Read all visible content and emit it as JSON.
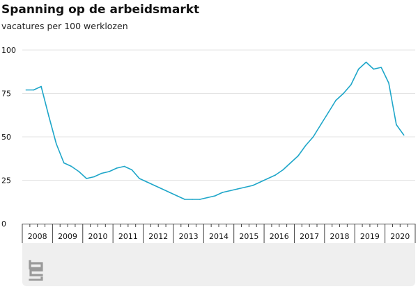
{
  "header": {
    "title": "Spanning op de arbeidsmarkt",
    "subtitle": "vacatures per 100 werklozen"
  },
  "chart_data": {
    "type": "line",
    "title": "Spanning op de arbeidsmarkt",
    "subtitle": "vacatures per 100 werklozen",
    "ylim": [
      0,
      100
    ],
    "xlim": [
      2007.875,
      2020.875
    ],
    "yticks": [
      0,
      25,
      50,
      75,
      100
    ],
    "grid": true,
    "legend": "none",
    "colors": {
      "line": "#1ea6c9",
      "grid": "#e3e3e3",
      "axis": "#444444",
      "footer": "#efefef",
      "logo": "#9a9a9a"
    },
    "year_labels": [
      "2008",
      "2009",
      "2010",
      "2011",
      "2012",
      "2013",
      "2014",
      "2015",
      "2016",
      "2017",
      "2018",
      "2019",
      "2020"
    ],
    "series": [
      {
        "x": [
          2008.0,
          2008.25,
          2008.5,
          2008.75,
          2009.0,
          2009.25,
          2009.5,
          2009.75,
          2010.0,
          2010.25,
          2010.5,
          2010.75,
          2011.0,
          2011.25,
          2011.5,
          2011.75,
          2012.0,
          2012.25,
          2012.5,
          2012.75,
          2013.0,
          2013.25,
          2013.5,
          2013.75,
          2014.0,
          2014.25,
          2014.5,
          2014.75,
          2015.0,
          2015.25,
          2015.5,
          2015.75,
          2016.0,
          2016.25,
          2016.5,
          2016.75,
          2017.0,
          2017.25,
          2017.5,
          2017.75,
          2018.0,
          2018.25,
          2018.5,
          2018.75,
          2019.0,
          2019.25,
          2019.5,
          2019.75,
          2020.0,
          2020.25,
          2020.5
        ],
        "values": [
          77,
          77,
          79,
          62,
          46,
          35,
          33,
          30,
          26,
          27,
          29,
          30,
          32,
          33,
          31,
          26,
          24,
          22,
          20,
          18,
          16,
          14,
          14,
          14,
          15,
          16,
          18,
          19,
          20,
          21,
          22,
          24,
          26,
          28,
          31,
          35,
          39,
          45,
          50,
          57,
          64,
          71,
          75,
          80,
          89,
          93,
          89,
          90,
          81,
          57,
          51
        ]
      }
    ]
  }
}
